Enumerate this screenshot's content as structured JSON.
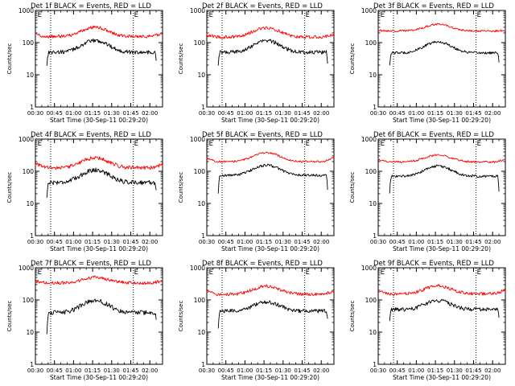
{
  "colors": {
    "events": "#000000",
    "lld": "#ff0000",
    "axis": "#000000",
    "background": "#ffffff"
  },
  "common": {
    "xlabel": "Start Time (30-Sep-11 00:29:20)",
    "ylabel": "Counts/sec",
    "xtick_labels": [
      "00:30",
      "00:45",
      "01:00",
      "01:15",
      "01:30",
      "01:45",
      "02:00"
    ],
    "ytick_labels": [
      "1",
      "10",
      "100",
      "1000"
    ],
    "flag_label": "E"
  },
  "chart_data": [
    {
      "type": "line",
      "title": "Det 1f BLACK = Events, RED = LLD",
      "x_range_minutes": [
        30,
        130
      ],
      "y_log": true,
      "ylim": [
        1,
        1000
      ],
      "dotted_lines_minutes": [
        42,
        107
      ],
      "e_flags_minutes": [
        31,
        107
      ],
      "series": [
        {
          "name": "Events",
          "color": "#000000",
          "start": 39,
          "end": 125,
          "base": 50,
          "peak": 115,
          "noise": 0.06,
          "drop_start": 20,
          "drop_end": 25
        },
        {
          "name": "LLD",
          "color": "#ff0000",
          "start": 30,
          "end": 130,
          "base": 155,
          "peak": 300,
          "noise": 0.05,
          "edge_left": 180,
          "edge_right": 190
        }
      ]
    },
    {
      "type": "line",
      "title": "Det 2f BLACK = Events, RED = LLD",
      "x_range_minutes": [
        30,
        130
      ],
      "y_log": true,
      "ylim": [
        1,
        1000
      ],
      "dotted_lines_minutes": [
        42,
        107
      ],
      "e_flags_minutes": [
        31,
        107
      ],
      "series": [
        {
          "name": "Events",
          "color": "#000000",
          "start": 39,
          "end": 125,
          "base": 50,
          "peak": 115,
          "noise": 0.06,
          "drop_start": 20,
          "drop_end": 25
        },
        {
          "name": "LLD",
          "color": "#ff0000",
          "start": 30,
          "end": 130,
          "base": 150,
          "peak": 290,
          "noise": 0.05,
          "edge_left": 170,
          "edge_right": 180
        }
      ]
    },
    {
      "type": "line",
      "title": "Det 3f BLACK = Events, RED = LLD",
      "x_range_minutes": [
        30,
        130
      ],
      "y_log": true,
      "ylim": [
        1,
        1000
      ],
      "dotted_lines_minutes": [
        42,
        107
      ],
      "e_flags_minutes": [
        31,
        107
      ],
      "series": [
        {
          "name": "Events",
          "color": "#000000",
          "start": 39,
          "end": 125,
          "base": 48,
          "peak": 105,
          "noise": 0.04,
          "drop_start": 20,
          "drop_end": 25
        },
        {
          "name": "LLD",
          "color": "#ff0000",
          "start": 30,
          "end": 130,
          "base": 230,
          "peak": 370,
          "noise": 0.03,
          "edge_left": 240,
          "edge_right": 240
        }
      ]
    },
    {
      "type": "line",
      "title": "Det 4f BLACK = Events, RED = LLD",
      "x_range_minutes": [
        30,
        130
      ],
      "y_log": true,
      "ylim": [
        1,
        1000
      ],
      "dotted_lines_minutes": [
        42,
        107
      ],
      "e_flags_minutes": [
        31,
        107
      ],
      "series": [
        {
          "name": "Events",
          "color": "#000000",
          "start": 39,
          "end": 125,
          "base": 45,
          "peak": 110,
          "noise": 0.07,
          "drop_start": 15,
          "drop_end": 25
        },
        {
          "name": "LLD",
          "color": "#ff0000",
          "start": 30,
          "end": 130,
          "base": 130,
          "peak": 260,
          "noise": 0.06,
          "edge_left": 170,
          "edge_right": 160
        }
      ]
    },
    {
      "type": "line",
      "title": "Det 5f BLACK = Events, RED = LLD",
      "x_range_minutes": [
        30,
        130
      ],
      "y_log": true,
      "ylim": [
        1,
        1000
      ],
      "dotted_lines_minutes": [
        42,
        107
      ],
      "e_flags_minutes": [
        31,
        107
      ],
      "series": [
        {
          "name": "Events",
          "color": "#000000",
          "start": 39,
          "end": 125,
          "base": 75,
          "peak": 155,
          "noise": 0.04,
          "drop_start": 20,
          "drop_end": 25
        },
        {
          "name": "LLD",
          "color": "#ff0000",
          "start": 30,
          "end": 130,
          "base": 200,
          "peak": 380,
          "noise": 0.03,
          "edge_left": 260,
          "edge_right": 270
        }
      ]
    },
    {
      "type": "line",
      "title": "Det 6f BLACK = Events, RED = LLD",
      "x_range_minutes": [
        30,
        130
      ],
      "y_log": true,
      "ylim": [
        1,
        1000
      ],
      "dotted_lines_minutes": [
        42,
        107
      ],
      "e_flags_minutes": [
        31,
        107
      ],
      "series": [
        {
          "name": "Events",
          "color": "#000000",
          "start": 39,
          "end": 125,
          "base": 70,
          "peak": 145,
          "noise": 0.04,
          "drop_start": 20,
          "drop_end": 25
        },
        {
          "name": "LLD",
          "color": "#ff0000",
          "start": 30,
          "end": 130,
          "base": 195,
          "peak": 320,
          "noise": 0.03,
          "edge_left": 230,
          "edge_right": 240
        }
      ]
    },
    {
      "type": "line",
      "title": "Det 7f BLACK = Events, RED = LLD",
      "x_range_minutes": [
        30,
        130
      ],
      "y_log": true,
      "ylim": [
        1,
        1000
      ],
      "dotted_lines_minutes": [
        42,
        107
      ],
      "e_flags_minutes": [
        31,
        107
      ],
      "series": [
        {
          "name": "Events",
          "color": "#000000",
          "start": 39,
          "end": 125,
          "base": 40,
          "peak": 95,
          "noise": 0.07,
          "drop_start": 8,
          "drop_end": 25
        },
        {
          "name": "LLD",
          "color": "#ff0000",
          "start": 30,
          "end": 130,
          "base": 340,
          "peak": 500,
          "noise": 0.05,
          "edge_left": 380,
          "edge_right": 390
        }
      ]
    },
    {
      "type": "line",
      "title": "Det 8f BLACK = Events, RED = LLD",
      "x_range_minutes": [
        30,
        130
      ],
      "y_log": true,
      "ylim": [
        1,
        1000
      ],
      "dotted_lines_minutes": [
        42,
        107
      ],
      "e_flags_minutes": [
        31,
        107
      ],
      "series": [
        {
          "name": "Events",
          "color": "#000000",
          "start": 39,
          "end": 125,
          "base": 45,
          "peak": 85,
          "noise": 0.06,
          "drop_start": 12,
          "drop_end": 25
        },
        {
          "name": "LLD",
          "color": "#ff0000",
          "start": 30,
          "end": 130,
          "base": 150,
          "peak": 270,
          "noise": 0.05,
          "edge_left": 190,
          "edge_right": 190
        }
      ]
    },
    {
      "type": "line",
      "title": "Det 9f BLACK = Events, RED = LLD",
      "x_range_minutes": [
        30,
        130
      ],
      "y_log": true,
      "ylim": [
        1,
        1000
      ],
      "dotted_lines_minutes": [
        42,
        107
      ],
      "e_flags_minutes": [
        31,
        107
      ],
      "series": [
        {
          "name": "Events",
          "color": "#000000",
          "start": 39,
          "end": 125,
          "base": 50,
          "peak": 95,
          "noise": 0.06,
          "drop_start": 20,
          "drop_end": 25
        },
        {
          "name": "LLD",
          "color": "#ff0000",
          "start": 30,
          "end": 130,
          "base": 155,
          "peak": 270,
          "noise": 0.05,
          "edge_left": 190,
          "edge_right": 200
        }
      ]
    }
  ]
}
